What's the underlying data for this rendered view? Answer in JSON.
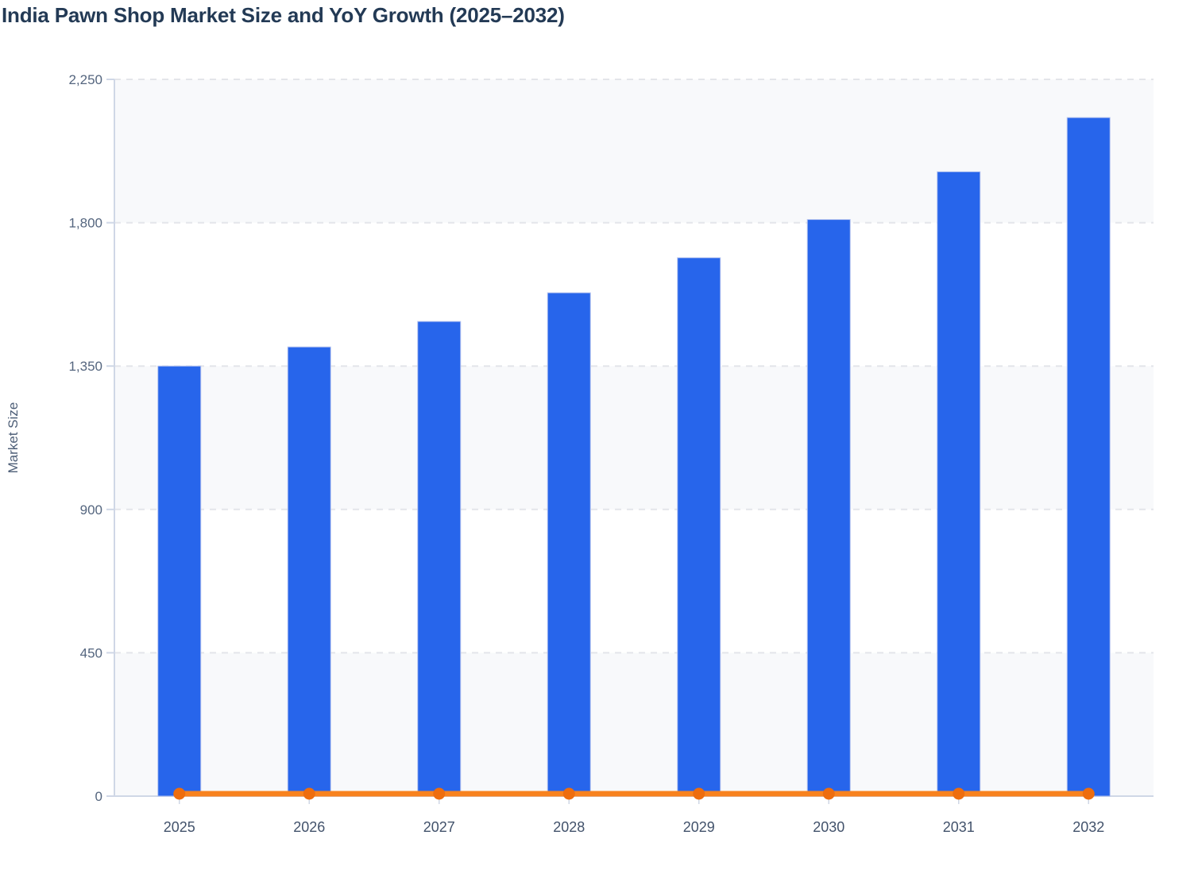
{
  "chart_data": {
    "type": "combo",
    "title": "India Pawn Shop Market Size and YoY Growth (2025–2032)",
    "ylabel": "Market Size",
    "xlabel": "",
    "categories": [
      "2025",
      "2026",
      "2027",
      "2028",
      "2029",
      "2030",
      "2031",
      "2032"
    ],
    "series": [
      {
        "name": "Market Size",
        "type": "bar",
        "color": "#2765EB",
        "values": [
          1350,
          1410,
          1490,
          1580,
          1690,
          1810,
          1960,
          2130
        ]
      },
      {
        "name": "YoY Growth",
        "type": "line",
        "color": "#F8821E",
        "marker_color": "#EE6D0E",
        "axis": "secondary-hidden",
        "values": [
          0,
          0,
          0,
          0,
          0,
          0,
          0,
          0
        ]
      }
    ],
    "y_axis": {
      "min": 0,
      "max": 2250,
      "ticks": [
        0,
        450,
        900,
        1350,
        1800,
        2250
      ],
      "tick_labels": [
        "0",
        "450",
        "900",
        "1,350",
        "1,800",
        "2,250"
      ]
    },
    "grid": "horizontal-dashed",
    "plot_bands_alternating": true,
    "legend": "none",
    "colors": {
      "band": "#F8F9FB",
      "gridline": "#E3E5EA",
      "axis_line": "#CFD7E6",
      "tick_stub": "#CFD7E6",
      "y_tick_label": "#55667F",
      "x_tick_label": "#42526B",
      "axis_title": "#4D5E77",
      "title": "#233A55",
      "bar_stroke": "#B3C2EF"
    }
  }
}
